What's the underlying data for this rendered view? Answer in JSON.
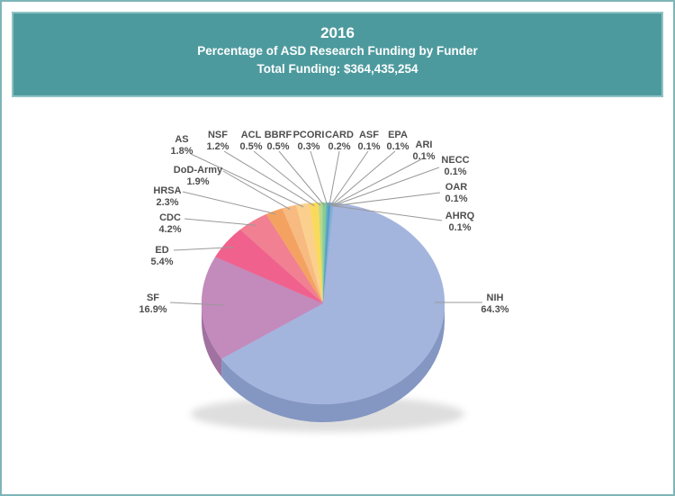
{
  "header": {
    "year": "2016",
    "title": "Percentage of ASD Research Funding by Funder",
    "subtitle": "Total Funding: $364,435,254",
    "bg_color": "#4d9a9e",
    "text_color": "#ffffff"
  },
  "chart_data": {
    "type": "pie",
    "style": "3d",
    "title": "2016 Percentage of ASD Research Funding by Funder",
    "total_funding": "$364,435,254",
    "unit": "percent",
    "start_angle_deg": 84.5,
    "direction": "clockwise",
    "legend_position": "callout-labels",
    "slices": [
      {
        "label": "NIH",
        "value": 64.3,
        "display": "64.3%",
        "color": "#a4b5dd",
        "side_color": "#8496c2"
      },
      {
        "label": "SF",
        "value": 16.9,
        "display": "16.9%",
        "color": "#c38abc",
        "side_color": "#a1719f"
      },
      {
        "label": "ED",
        "value": 5.4,
        "display": "5.4%",
        "color": "#f0618d",
        "side_color": "#c44d72"
      },
      {
        "label": "CDC",
        "value": 4.2,
        "display": "4.2%",
        "color": "#f08092",
        "side_color": "#c36676"
      },
      {
        "label": "HRSA",
        "value": 2.3,
        "display": "2.3%",
        "color": "#f4a262",
        "side_color": "#c5824e"
      },
      {
        "label": "DoD-Army",
        "value": 1.9,
        "display": "1.9%",
        "color": "#f7bb82",
        "side_color": "#c79668"
      },
      {
        "label": "AS",
        "value": 1.8,
        "display": "1.8%",
        "color": "#fbd08f",
        "side_color": "#caa771"
      },
      {
        "label": "NSF",
        "value": 1.2,
        "display": "1.2%",
        "color": "#fada5c",
        "side_color": "#c9af49"
      },
      {
        "label": "ACL",
        "value": 0.5,
        "display": "0.5%",
        "color": "#b9d98a",
        "side_color": "#94ae6e"
      },
      {
        "label": "BBRF",
        "value": 0.5,
        "display": "0.5%",
        "color": "#8ccb96",
        "side_color": "#70a378"
      },
      {
        "label": "PCORI",
        "value": 0.3,
        "display": "0.3%",
        "color": "#5bb3b9",
        "side_color": "#489094"
      },
      {
        "label": "CARD",
        "value": 0.2,
        "display": "0.2%",
        "color": "#4f96c6",
        "side_color": "#3f789e"
      },
      {
        "label": "ASF",
        "value": 0.1,
        "display": "0.1%",
        "color": "#6aa0d0",
        "side_color": "#5580a6"
      },
      {
        "label": "EPA",
        "value": 0.1,
        "display": "0.1%",
        "color": "#7aa6d4",
        "side_color": "#6285aa"
      },
      {
        "label": "ARI",
        "value": 0.1,
        "display": "0.1%",
        "color": "#88acd8",
        "side_color": "#6d8aad"
      },
      {
        "label": "NECC",
        "value": 0.1,
        "display": "0.1%",
        "color": "#7ea9d5",
        "side_color": "#6587aa"
      },
      {
        "label": "OAR",
        "value": 0.1,
        "display": "0.1%",
        "color": "#90b1da",
        "side_color": "#738eae"
      },
      {
        "label": "AHRQ",
        "value": 0.1,
        "display": "0.1%",
        "color": "#9ab6dd",
        "side_color": "#7b92b1"
      }
    ],
    "styles": {
      "label_color": "#4e4e4e",
      "leader_line_color": "#999999",
      "page_border_color": "#7db5b8"
    }
  }
}
